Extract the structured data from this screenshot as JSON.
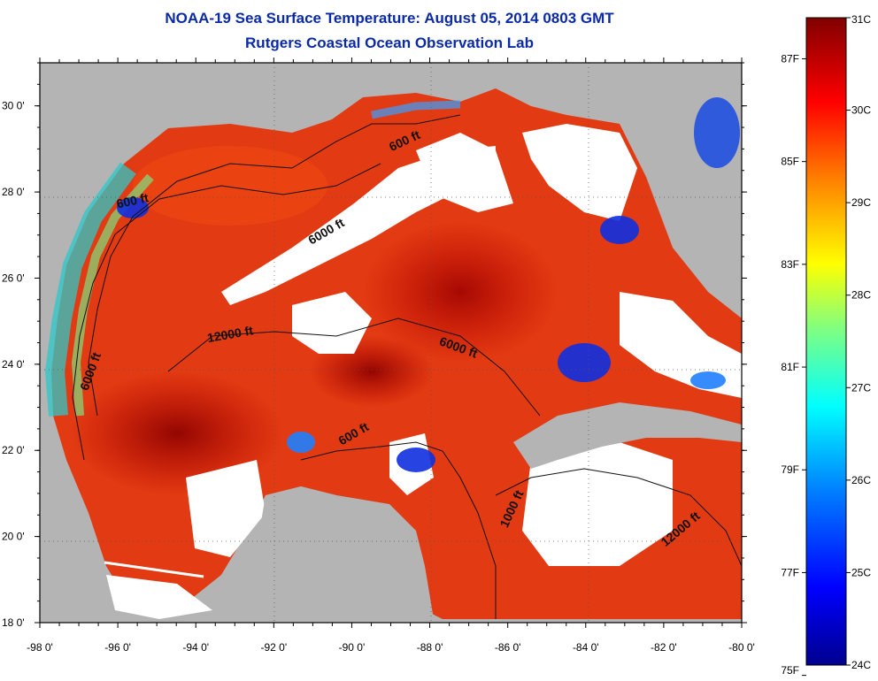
{
  "title": {
    "line1": "NOAA-19 Sea Surface Temperature:  August 05, 2014 0803 GMT",
    "line2": "Rutgers Coastal Ocean Observation Lab"
  },
  "map": {
    "lon_range": [
      -98,
      -80
    ],
    "lat_range": [
      18,
      31
    ],
    "x_ticks": [
      {
        "lon": -98,
        "label": "-98 0'"
      },
      {
        "lon": -96,
        "label": "-96 0'"
      },
      {
        "lon": -94,
        "label": "-94 0'"
      },
      {
        "lon": -92,
        "label": "-92 0'"
      },
      {
        "lon": -90,
        "label": "-90 0'"
      },
      {
        "lon": -88,
        "label": "-88 0'"
      },
      {
        "lon": -86,
        "label": "-86 0'"
      },
      {
        "lon": -84,
        "label": "-84 0'"
      },
      {
        "lon": -82,
        "label": "-82 0'"
      },
      {
        "lon": -80,
        "label": "-80 0'"
      }
    ],
    "y_ticks": [
      {
        "lat": 30,
        "label": "30 0'"
      },
      {
        "lat": 28,
        "label": "28 0'"
      },
      {
        "lat": 26,
        "label": "26 0'"
      },
      {
        "lat": 24,
        "label": "24 0'"
      },
      {
        "lat": 22,
        "label": "22 0'"
      },
      {
        "lat": 20,
        "label": "20 0'"
      },
      {
        "lat": 18,
        "label": "18 0'"
      }
    ],
    "contour_labels": [
      {
        "text": "600 ft",
        "lon": -88.6,
        "lat": 29.1,
        "rot": -25
      },
      {
        "text": "600 ft",
        "lon": -95.6,
        "lat": 27.7,
        "rot": -12
      },
      {
        "text": "6000 ft",
        "lon": -90.6,
        "lat": 27.0,
        "rot": -30
      },
      {
        "text": "12000 ft",
        "lon": -93.1,
        "lat": 24.6,
        "rot": -10
      },
      {
        "text": "6000 ft",
        "lon": -87.3,
        "lat": 24.3,
        "rot": 20
      },
      {
        "text": "6000 ft",
        "lon": -96.6,
        "lat": 23.8,
        "rot": -70
      },
      {
        "text": "600 ft",
        "lon": -89.9,
        "lat": 22.3,
        "rot": -30
      },
      {
        "text": "1000 ft",
        "lon": -85.8,
        "lat": 20.6,
        "rot": -65
      },
      {
        "text": "12000 ft",
        "lon": -81.5,
        "lat": 20.1,
        "rot": -40
      }
    ],
    "colors": {
      "land": "#b4b4b4",
      "nodata": "#ffffff",
      "frame": "#000000"
    }
  },
  "colorbar": {
    "min_c": 24,
    "max_c": 31,
    "celsius_labels": [
      {
        "value": 31,
        "label": "31C"
      },
      {
        "value": 30,
        "label": "30C"
      },
      {
        "value": 29,
        "label": "29C"
      },
      {
        "value": 28,
        "label": "28C"
      },
      {
        "value": 27,
        "label": "27C"
      },
      {
        "value": 26,
        "label": "26C"
      },
      {
        "value": 25,
        "label": "25C"
      },
      {
        "value": 24,
        "label": "24C"
      }
    ],
    "fahrenheit_labels": [
      {
        "value": 87,
        "label": "87F"
      },
      {
        "value": 85,
        "label": "85F"
      },
      {
        "value": 83,
        "label": "83F"
      },
      {
        "value": 81,
        "label": "81F"
      },
      {
        "value": 79,
        "label": "79F"
      },
      {
        "value": 77,
        "label": "77F"
      },
      {
        "value": 75,
        "label": "75F"
      }
    ],
    "stops": [
      "#00008f",
      "#0000ff",
      "#0080ff",
      "#00ffff",
      "#80ff80",
      "#ffff00",
      "#ff8000",
      "#ff0000",
      "#800000"
    ]
  }
}
